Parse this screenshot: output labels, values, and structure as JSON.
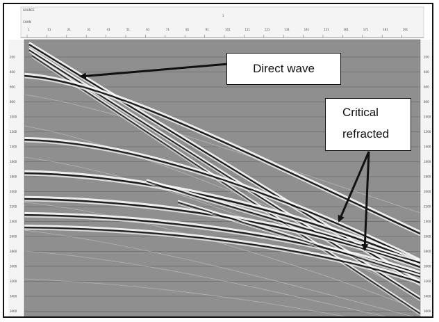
{
  "header": {
    "source_label": "SOURCE",
    "source_value": "1",
    "chan_label": "CHAN",
    "trace_ticks": [
      "1",
      "11",
      "21",
      "31",
      "41",
      "51",
      "61",
      "71",
      "81",
      "91",
      "101",
      "111",
      "121",
      "131",
      "141",
      "151",
      "161",
      "171",
      "181",
      "191"
    ]
  },
  "time_axis": {
    "ticks": [
      "200",
      "400",
      "600",
      "800",
      "1000",
      "1200",
      "1400",
      "1600",
      "1800",
      "2000",
      "2200",
      "2400",
      "2600",
      "2800",
      "3000",
      "3200",
      "3400",
      "3600",
      "3800"
    ]
  },
  "annotations": {
    "direct_wave": "Direct wave",
    "critical_line1": "Critical",
    "critical_line2": "refracted"
  },
  "colors": {
    "panel_background": "#8f8f8f",
    "wavelet_dark": "#111111",
    "wavelet_light": "#ffffff",
    "arrow": "#111111"
  }
}
